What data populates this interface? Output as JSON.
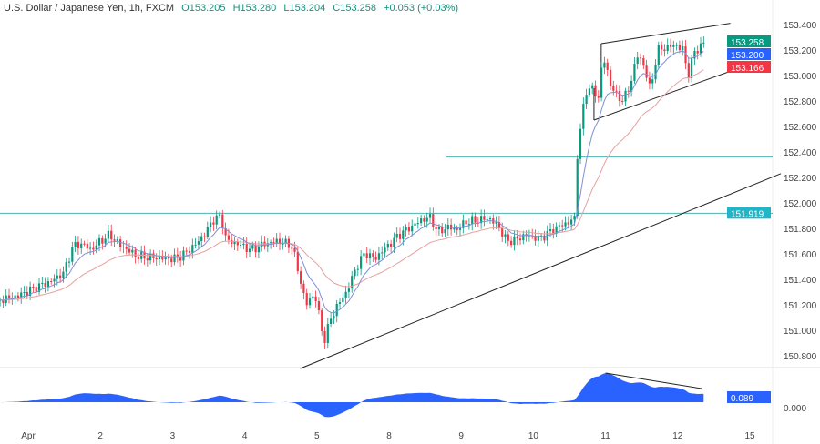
{
  "header": {
    "symbol": "U.S. Dollar / Japanese Yen, 1h, FXCM",
    "open": "O153.205",
    "high": "H153.280",
    "low": "L153.204",
    "close": "C153.258",
    "change": "+0.053 (+0.03%)"
  },
  "chart_data": {
    "type": "candlestick",
    "x_ticks": [
      "Apr",
      "2",
      "3",
      "4",
      "5",
      "8",
      "9",
      "10",
      "11",
      "12",
      "15"
    ],
    "y_ticks": [
      "153.400",
      "153.200",
      "153.000",
      "152.800",
      "152.600",
      "152.400",
      "152.200",
      "152.000",
      "151.800",
      "151.600",
      "151.400",
      "151.200",
      "151.000",
      "150.800"
    ],
    "ylim": [
      150.73,
      153.5
    ],
    "close_path": [
      [
        -0.39,
        151.24
      ],
      [
        -0.14,
        151.27
      ],
      [
        0.11,
        151.34
      ],
      [
        0.3,
        151.38
      ],
      [
        0.49,
        151.45
      ],
      [
        0.62,
        151.66
      ],
      [
        0.75,
        151.68
      ],
      [
        0.87,
        151.63
      ],
      [
        1.0,
        151.7
      ],
      [
        1.13,
        151.75
      ],
      [
        1.25,
        151.68
      ],
      [
        1.51,
        151.58
      ],
      [
        1.76,
        151.57
      ],
      [
        2.01,
        151.56
      ],
      [
        2.14,
        151.59
      ],
      [
        2.33,
        151.68
      ],
      [
        2.46,
        151.77
      ],
      [
        2.58,
        151.88
      ],
      [
        2.67,
        151.89
      ],
      [
        2.75,
        151.7
      ],
      [
        2.9,
        151.68
      ],
      [
        3.09,
        151.63
      ],
      [
        3.28,
        151.68
      ],
      [
        3.47,
        151.7
      ],
      [
        3.66,
        151.66
      ],
      [
        3.85,
        151.2
      ],
      [
        3.97,
        151.29
      ],
      [
        4.1,
        150.91
      ],
      [
        4.19,
        151.09
      ],
      [
        4.29,
        151.2
      ],
      [
        4.42,
        151.31
      ],
      [
        4.54,
        151.49
      ],
      [
        4.67,
        151.61
      ],
      [
        4.8,
        151.56
      ],
      [
        4.92,
        151.63
      ],
      [
        5.05,
        151.7
      ],
      [
        5.18,
        151.77
      ],
      [
        5.3,
        151.81
      ],
      [
        5.43,
        151.86
      ],
      [
        5.56,
        151.89
      ],
      [
        5.68,
        151.77
      ],
      [
        5.81,
        151.81
      ],
      [
        5.94,
        151.79
      ],
      [
        6.06,
        151.85
      ],
      [
        6.19,
        151.86
      ],
      [
        6.38,
        151.88
      ],
      [
        6.51,
        151.82
      ],
      [
        6.63,
        151.7
      ],
      [
        6.76,
        151.71
      ],
      [
        6.89,
        151.75
      ],
      [
        7.08,
        151.72
      ],
      [
        7.2,
        151.76
      ],
      [
        7.33,
        151.81
      ],
      [
        7.46,
        151.84
      ],
      [
        7.58,
        151.88
      ],
      [
        7.61,
        152.38
      ],
      [
        7.67,
        152.66
      ],
      [
        7.73,
        152.88
      ],
      [
        7.81,
        152.91
      ],
      [
        7.9,
        152.81
      ],
      [
        7.96,
        153.16
      ],
      [
        8.06,
        152.95
      ],
      [
        8.15,
        152.84
      ],
      [
        8.24,
        152.81
      ],
      [
        8.34,
        152.91
      ],
      [
        8.43,
        153.16
      ],
      [
        8.53,
        153.09
      ],
      [
        8.62,
        152.88
      ],
      [
        8.72,
        153.2
      ],
      [
        8.85,
        153.22
      ],
      [
        8.97,
        153.24
      ],
      [
        9.08,
        153.2
      ],
      [
        9.14,
        152.99
      ],
      [
        9.23,
        153.18
      ],
      [
        9.33,
        153.24
      ],
      [
        9.39,
        153.258
      ]
    ],
    "horizontal_levels": [
      151.919,
      152.36
    ],
    "trendline": [
      [
        3.77,
        150.7
      ],
      [
        10.43,
        152.23
      ]
    ],
    "channel_upper": [
      [
        7.94,
        153.25
      ],
      [
        9.73,
        153.41
      ]
    ],
    "channel_lower": [
      [
        7.84,
        152.65
      ],
      [
        9.86,
        153.06
      ]
    ],
    "price_labels": [
      {
        "value": "153.258",
        "color": "#089981"
      },
      {
        "value": "153.200",
        "color": "#2962ff"
      },
      {
        "value": "153.166",
        "color": "#f23645"
      },
      {
        "value": "151.919",
        "color": "#22b5c7"
      }
    ],
    "indicator": {
      "value_label": "0.089",
      "zero_label": "0.000",
      "color": "#2962ff"
    },
    "colors": {
      "up": "#089981",
      "down": "#f23645",
      "ma_fast": "#7e8ed8",
      "ma_slow": "#e8a0a0",
      "level": "#4bb3ad"
    }
  }
}
